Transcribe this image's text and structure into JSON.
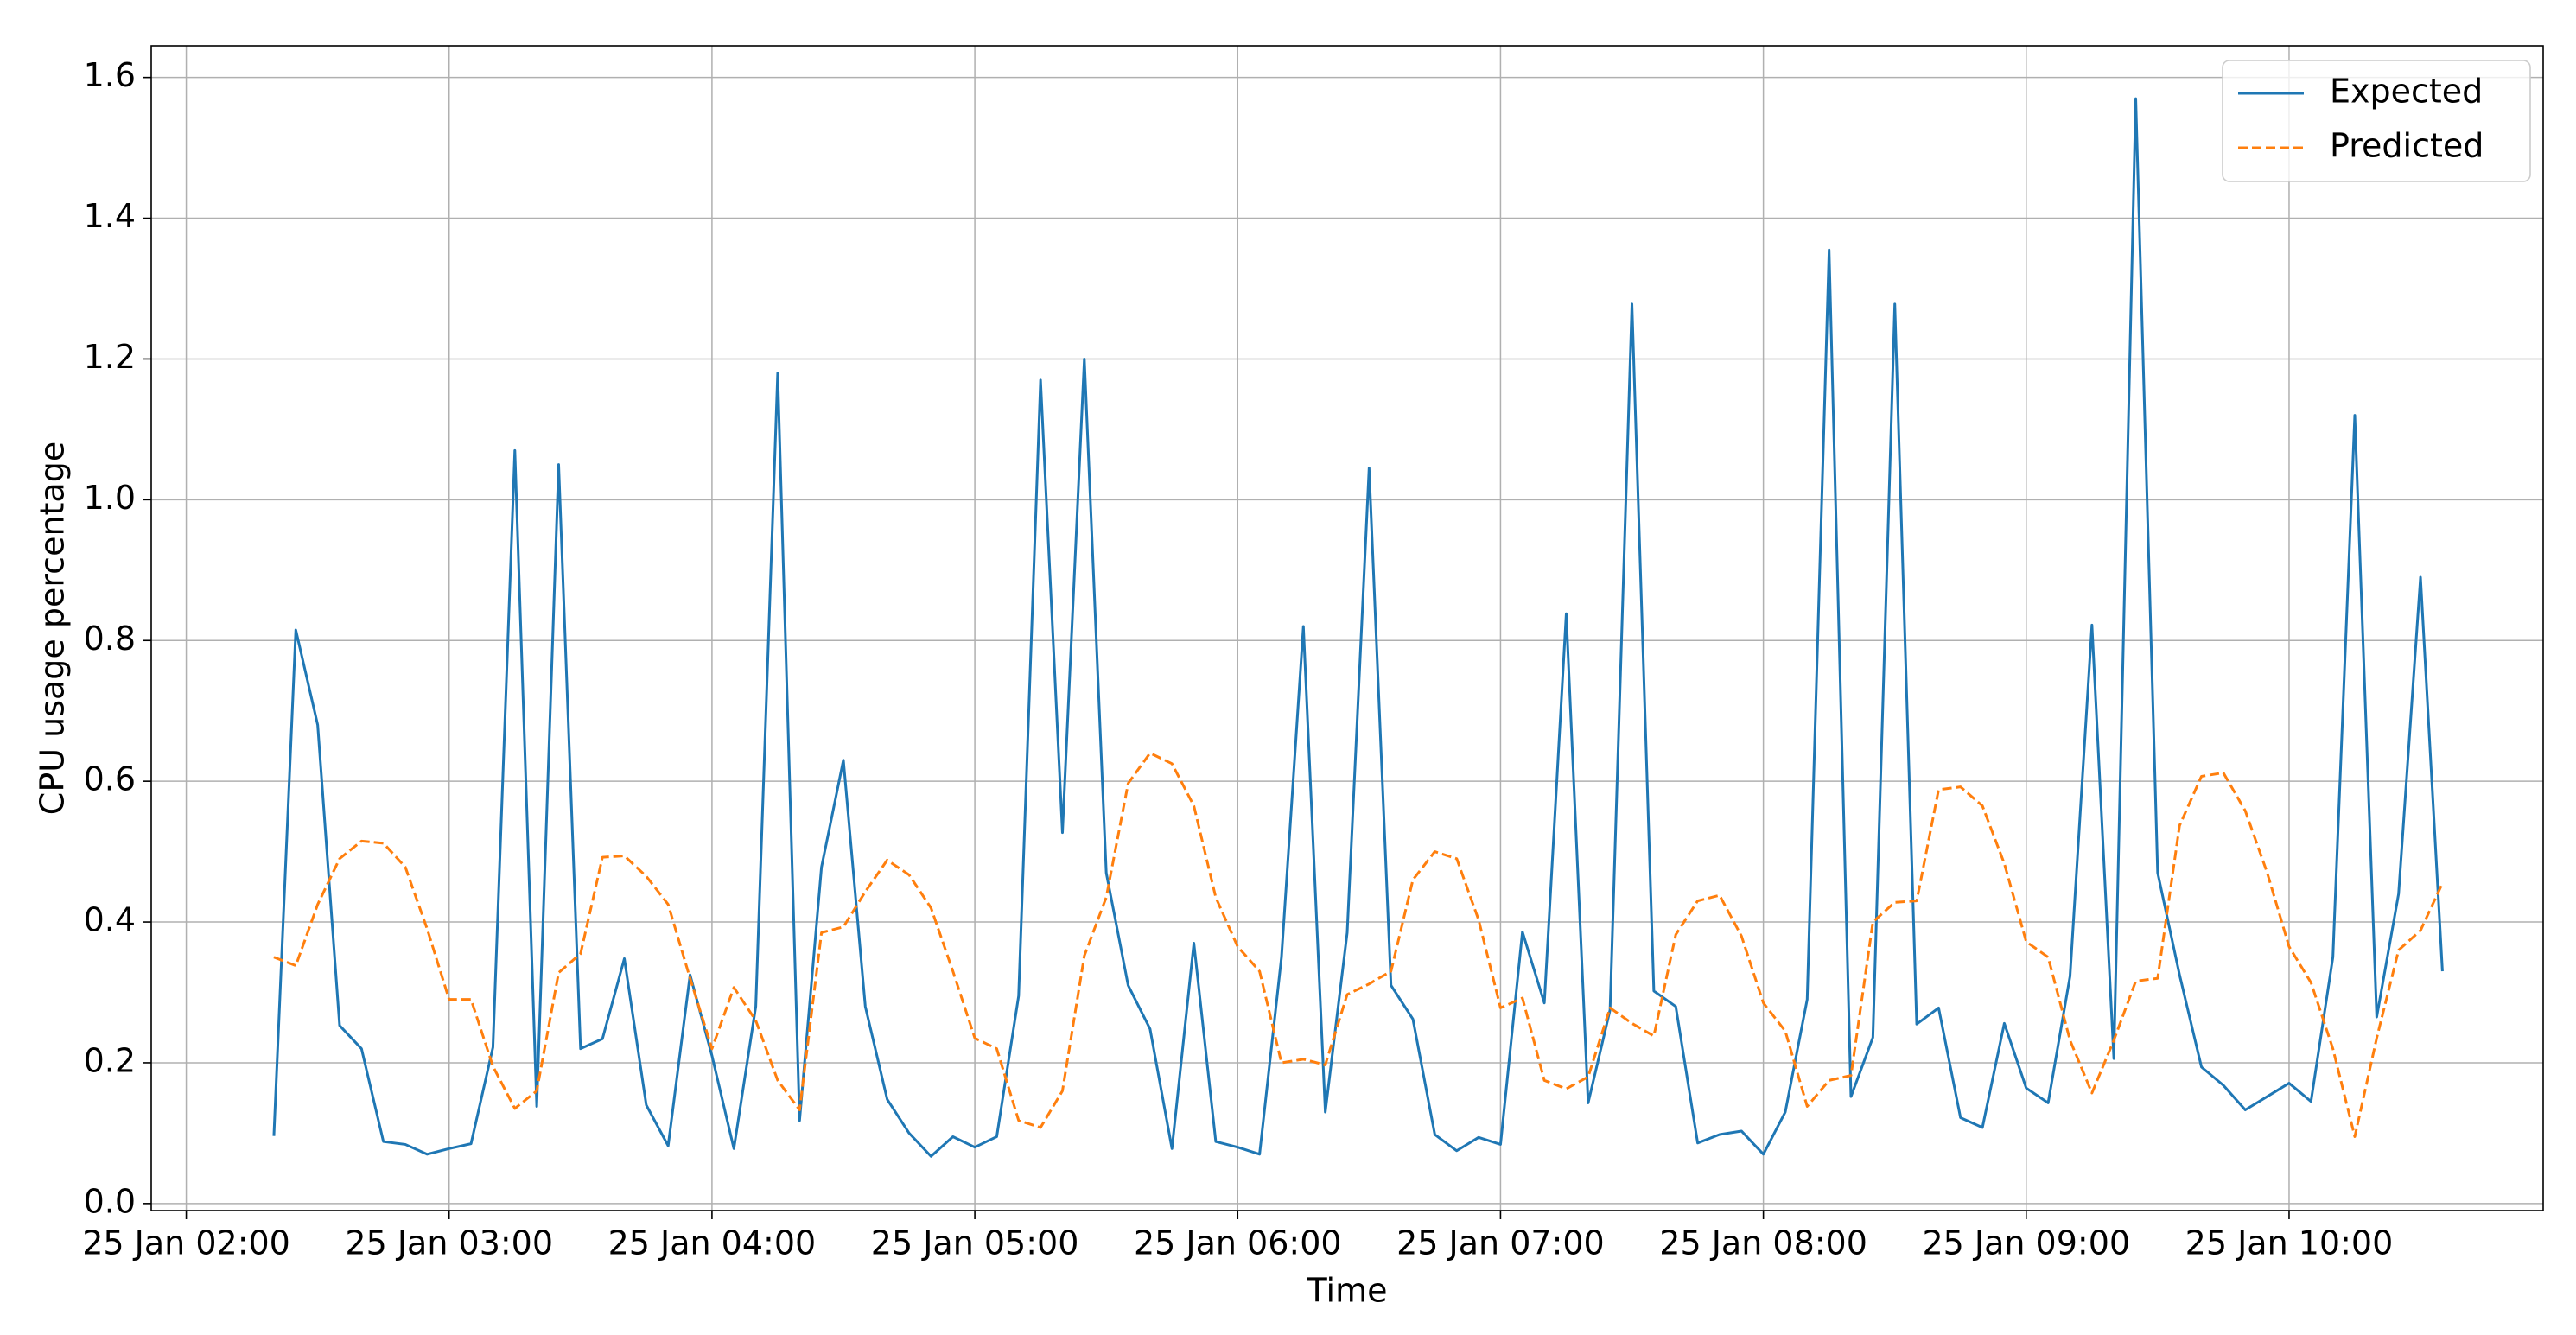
{
  "chart_data": {
    "type": "line",
    "xlabel": "Time",
    "ylabel": "CPU usage percentage",
    "x": [
      "25 Jan 02:20",
      "25 Jan 02:25",
      "25 Jan 02:30",
      "25 Jan 02:35",
      "25 Jan 02:40",
      "25 Jan 02:45",
      "25 Jan 02:50",
      "25 Jan 02:55",
      "25 Jan 03:00",
      "25 Jan 03:05",
      "25 Jan 03:10",
      "25 Jan 03:15",
      "25 Jan 03:20",
      "25 Jan 03:25",
      "25 Jan 03:30",
      "25 Jan 03:35",
      "25 Jan 03:40",
      "25 Jan 03:45",
      "25 Jan 03:50",
      "25 Jan 03:55",
      "25 Jan 04:00",
      "25 Jan 04:05",
      "25 Jan 04:10",
      "25 Jan 04:15",
      "25 Jan 04:20",
      "25 Jan 04:25",
      "25 Jan 04:30",
      "25 Jan 04:35",
      "25 Jan 04:40",
      "25 Jan 04:45",
      "25 Jan 04:50",
      "25 Jan 04:55",
      "25 Jan 05:00",
      "25 Jan 05:05",
      "25 Jan 05:10",
      "25 Jan 05:15",
      "25 Jan 05:20",
      "25 Jan 05:25",
      "25 Jan 05:30",
      "25 Jan 05:35",
      "25 Jan 05:40",
      "25 Jan 05:45",
      "25 Jan 05:50",
      "25 Jan 05:55",
      "25 Jan 06:00",
      "25 Jan 06:05",
      "25 Jan 06:10",
      "25 Jan 06:15",
      "25 Jan 06:20",
      "25 Jan 06:25",
      "25 Jan 06:30",
      "25 Jan 06:35",
      "25 Jan 06:40",
      "25 Jan 06:45",
      "25 Jan 06:50",
      "25 Jan 06:55",
      "25 Jan 07:00",
      "25 Jan 07:05",
      "25 Jan 07:10",
      "25 Jan 07:15",
      "25 Jan 07:20",
      "25 Jan 07:25",
      "25 Jan 07:30",
      "25 Jan 07:35",
      "25 Jan 07:40",
      "25 Jan 07:45",
      "25 Jan 07:50",
      "25 Jan 07:55",
      "25 Jan 08:00",
      "25 Jan 08:05",
      "25 Jan 08:10",
      "25 Jan 08:15",
      "25 Jan 08:20",
      "25 Jan 08:25",
      "25 Jan 08:30",
      "25 Jan 08:35",
      "25 Jan 08:40",
      "25 Jan 08:45",
      "25 Jan 08:50",
      "25 Jan 08:55",
      "25 Jan 09:00",
      "25 Jan 09:05",
      "25 Jan 09:10",
      "25 Jan 09:15",
      "25 Jan 09:20",
      "25 Jan 09:25",
      "25 Jan 09:30",
      "25 Jan 09:35",
      "25 Jan 09:40",
      "25 Jan 09:45",
      "25 Jan 09:50",
      "25 Jan 09:55",
      "25 Jan 10:00",
      "25 Jan 10:05",
      "25 Jan 10:10",
      "25 Jan 10:15",
      "25 Jan 10:20",
      "25 Jan 10:25",
      "25 Jan 10:30",
      "25 Jan 10:35"
    ],
    "series": [
      {
        "name": "Expected",
        "color": "#1f77b4",
        "linestyle": "solid",
        "values": [
          0.096,
          0.815,
          0.68,
          0.253,
          0.22,
          0.088,
          0.084,
          0.07,
          0.078,
          0.085,
          0.222,
          1.07,
          0.138,
          1.05,
          0.22,
          0.234,
          0.348,
          0.14,
          0.082,
          0.325,
          0.21,
          0.078,
          0.28,
          1.18,
          0.118,
          0.478,
          0.63,
          0.28,
          0.148,
          0.1,
          0.067,
          0.095,
          0.08,
          0.095,
          0.295,
          1.17,
          0.527,
          1.2,
          0.47,
          0.31,
          0.248,
          0.078,
          0.37,
          0.088,
          0.08,
          0.07,
          0.35,
          0.82,
          0.13,
          0.385,
          1.045,
          0.31,
          0.262,
          0.098,
          0.075,
          0.094,
          0.084,
          0.386,
          0.285,
          0.838,
          0.143,
          0.275,
          1.278,
          0.302,
          0.28,
          0.086,
          0.098,
          0.103,
          0.07,
          0.13,
          0.29,
          1.355,
          0.152,
          0.236,
          1.278,
          0.255,
          0.278,
          0.122,
          0.108,
          0.256,
          0.164,
          0.143,
          0.323,
          0.822,
          0.206,
          1.57,
          0.47,
          0.325,
          0.194,
          0.168,
          0.133,
          0.152,
          0.171,
          0.145,
          0.35,
          1.12,
          0.265,
          0.44,
          0.89,
          0.33
        ]
      },
      {
        "name": "Predicted",
        "color": "#ff7f0e",
        "linestyle": "dashed",
        "values": [
          0.35,
          0.338,
          0.425,
          0.49,
          0.515,
          0.512,
          0.478,
          0.39,
          0.29,
          0.29,
          0.195,
          0.135,
          0.16,
          0.328,
          0.355,
          0.492,
          0.494,
          0.465,
          0.425,
          0.32,
          0.22,
          0.307,
          0.26,
          0.175,
          0.133,
          0.385,
          0.393,
          0.443,
          0.488,
          0.467,
          0.42,
          0.33,
          0.235,
          0.22,
          0.118,
          0.108,
          0.16,
          0.352,
          0.435,
          0.597,
          0.64,
          0.625,
          0.565,
          0.435,
          0.365,
          0.33,
          0.2,
          0.205,
          0.197,
          0.297,
          0.312,
          0.33,
          0.46,
          0.5,
          0.49,
          0.403,
          0.278,
          0.292,
          0.175,
          0.163,
          0.18,
          0.278,
          0.256,
          0.238,
          0.382,
          0.43,
          0.438,
          0.38,
          0.285,
          0.245,
          0.138,
          0.175,
          0.182,
          0.4,
          0.428,
          0.43,
          0.588,
          0.592,
          0.565,
          0.483,
          0.372,
          0.35,
          0.232,
          0.157,
          0.232,
          0.316,
          0.32,
          0.537,
          0.607,
          0.612,
          0.558,
          0.47,
          0.365,
          0.314,
          0.22,
          0.095,
          0.235,
          0.36,
          0.388,
          0.455
        ]
      }
    ],
    "xlim": [
      "25 Jan 01:52",
      "25 Jan 10:58"
    ],
    "xticks": [
      "25 Jan 02:00",
      "25 Jan 03:00",
      "25 Jan 04:00",
      "25 Jan 05:00",
      "25 Jan 06:00",
      "25 Jan 07:00",
      "25 Jan 08:00",
      "25 Jan 09:00",
      "25 Jan 10:00"
    ],
    "ylim": [
      -0.01,
      1.645
    ],
    "yticks": [
      {
        "value": 0,
        "label": "0.0"
      },
      0.2,
      0.4,
      0.6,
      0.8,
      {
        "value": 1,
        "label": "1.0"
      },
      1.2,
      1.4,
      1.6
    ],
    "grid": true,
    "legend": "upper right"
  }
}
